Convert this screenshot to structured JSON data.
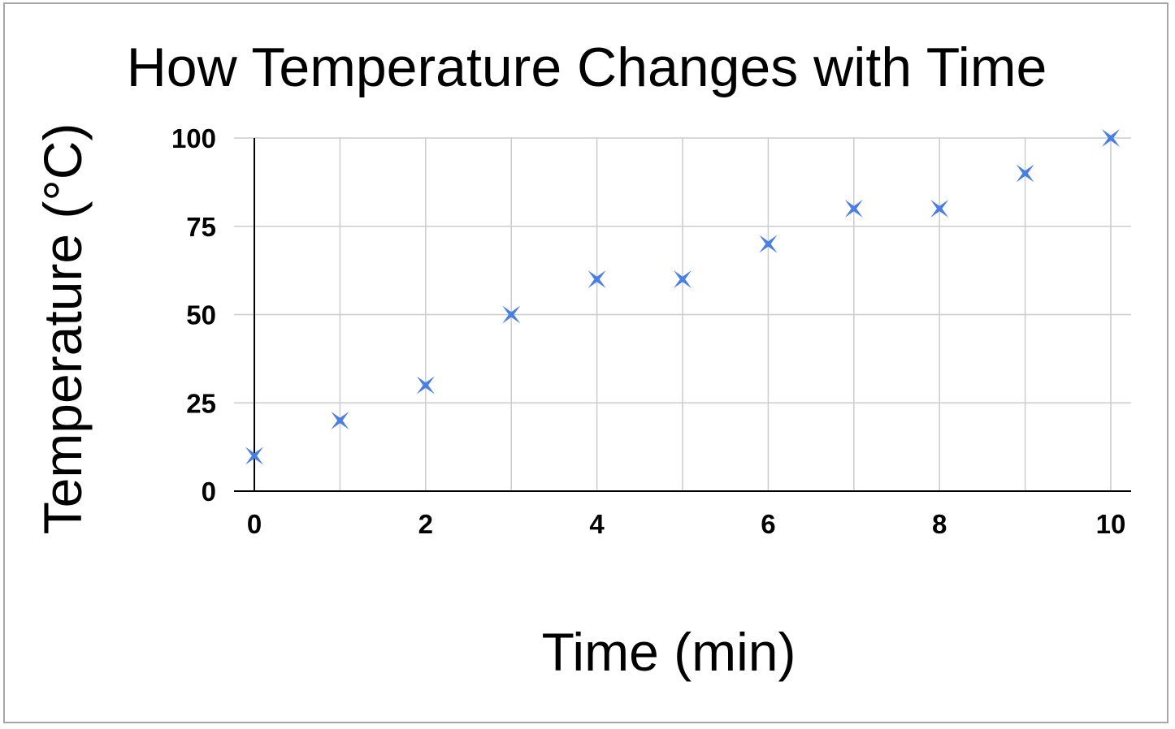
{
  "chart_data": {
    "type": "scatter",
    "title": "How Temperature Changes with Time",
    "xlabel": "Time (min)",
    "ylabel": "Temperature (°C)",
    "xlim": [
      0,
      10
    ],
    "ylim": [
      0,
      100
    ],
    "x_ticks": [
      0,
      2,
      4,
      6,
      8,
      10
    ],
    "y_ticks": [
      0,
      25,
      50,
      75,
      100
    ],
    "grid": true,
    "marker": "x-star",
    "color": "#4a7fe0",
    "series": [
      {
        "x": [
          0,
          1,
          2,
          3,
          4,
          5,
          6,
          7,
          8,
          9,
          10
        ],
        "y": [
          10,
          20,
          30,
          50,
          60,
          60,
          70,
          80,
          80,
          90,
          100
        ]
      }
    ]
  }
}
